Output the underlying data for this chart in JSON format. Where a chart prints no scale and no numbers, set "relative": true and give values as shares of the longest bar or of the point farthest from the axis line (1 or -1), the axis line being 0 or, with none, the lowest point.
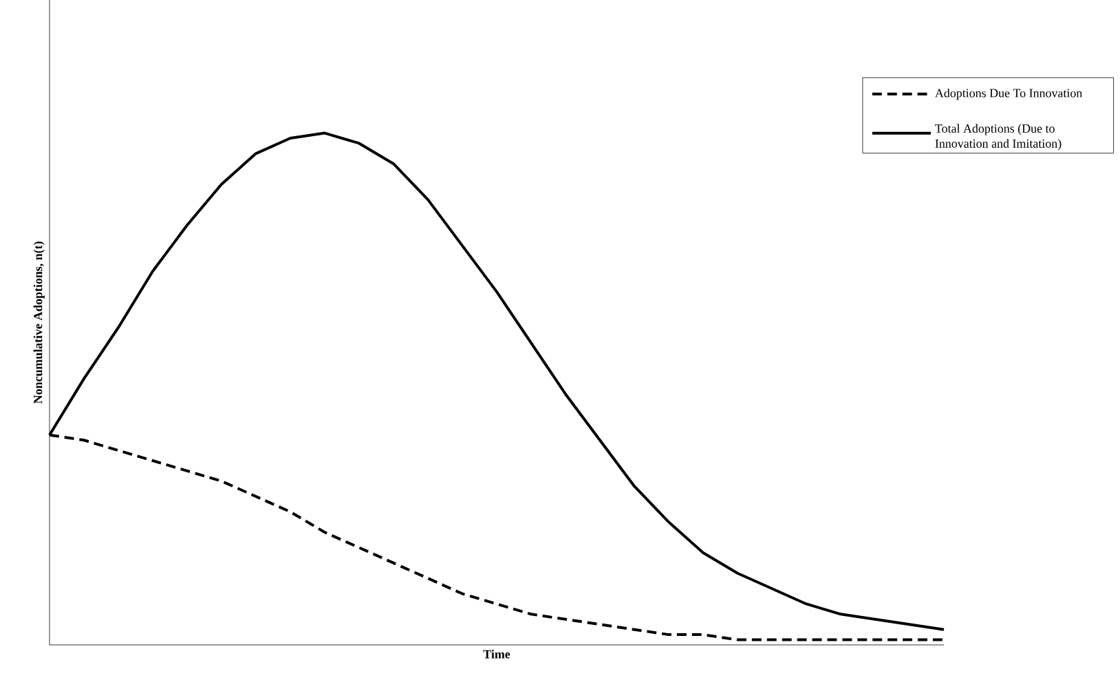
{
  "chart_data": {
    "type": "line",
    "relative": true,
    "xlabel": "Time",
    "ylabel": "Noncumulative Adoptions, n(t)",
    "categories": [
      null,
      null,
      null,
      null,
      null,
      null,
      null,
      null,
      null,
      null,
      null,
      null,
      null,
      null,
      null,
      null,
      null,
      null,
      null,
      null,
      null,
      null,
      null,
      null,
      null,
      null,
      null
    ],
    "series": [
      {
        "name": "Adoptions Due To Innovation",
        "color": "#000000",
        "line_style": "dashed",
        "values": [
          0.41,
          0.4,
          0.38,
          0.36,
          0.34,
          0.32,
          0.29,
          0.26,
          0.22,
          0.19,
          0.16,
          0.13,
          0.1,
          0.08,
          0.06,
          0.05,
          0.04,
          0.03,
          0.02,
          0.02,
          0.01,
          0.01,
          0.01,
          0.01,
          0.01,
          0.01,
          0.01
        ]
      },
      {
        "name": "Total Adoptions (Due to Innovation and Imitation)",
        "color": "#000000",
        "line_style": "solid",
        "values": [
          0.41,
          0.52,
          0.62,
          0.73,
          0.82,
          0.9,
          0.96,
          0.99,
          1.0,
          0.98,
          0.94,
          0.87,
          0.78,
          0.69,
          0.59,
          0.49,
          0.4,
          0.31,
          0.24,
          0.18,
          0.14,
          0.11,
          0.08,
          0.06,
          0.05,
          0.04,
          0.03
        ]
      }
    ],
    "legend": "top right",
    "marker": "none"
  }
}
